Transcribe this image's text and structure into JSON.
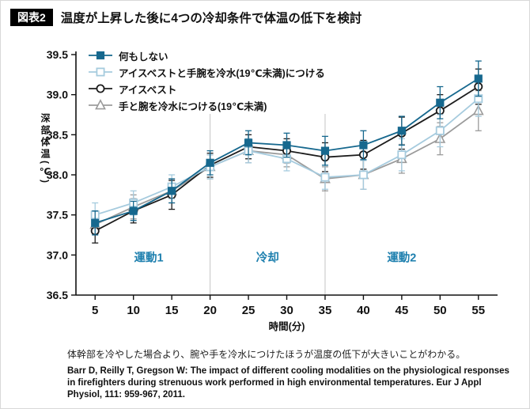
{
  "header": {
    "badge": "図表2",
    "title": "温度が上昇した後に4つの冷却条件で体温の低下を検討"
  },
  "note": "体幹部を冷やした場合より、腕や手を冷水につけたほうが温度の低下が大きいことがわかる。",
  "citation": "Barr D, Reilly T, Gregson W: The impact of different cooling modalities on the physiological responses in firefighters during strenuous work performed in high environmental temperatures. Eur J Appl Physiol, 111: 959-967, 2011.",
  "chart_data": {
    "type": "line",
    "x": [
      5,
      10,
      15,
      20,
      25,
      30,
      35,
      40,
      45,
      50,
      55
    ],
    "xlabel": "時間(分)",
    "ylabel": "深部体温(℃)",
    "xlim": [
      2.5,
      57.5
    ],
    "ylim": [
      36.5,
      39.5
    ],
    "ytick_step": 0.5,
    "grid": false,
    "legend_position": "top-left",
    "phase_color": "#1d7fae",
    "dividers": [
      20,
      35
    ],
    "phases": [
      {
        "label": "運動1",
        "x": 12
      },
      {
        "label": "冷却",
        "x": 27.5
      },
      {
        "label": "運動2",
        "x": 45
      }
    ],
    "series": [
      {
        "name": "何もしない",
        "marker": "square-filled",
        "color": "#16688e",
        "values": [
          37.4,
          37.55,
          37.8,
          38.15,
          38.4,
          38.37,
          38.3,
          38.37,
          38.55,
          38.9,
          39.2
        ],
        "errors": [
          0.15,
          0.12,
          0.15,
          0.15,
          0.15,
          0.15,
          0.18,
          0.18,
          0.18,
          0.2,
          0.22
        ]
      },
      {
        "name": "アイスベストと手腕を冷水(19℃未満)につける",
        "marker": "square-open",
        "color": "#a6cbde",
        "values": [
          37.5,
          37.65,
          37.85,
          38.1,
          38.3,
          38.2,
          37.97,
          38.0,
          38.25,
          38.55,
          38.95
        ],
        "errors": [
          0.15,
          0.15,
          0.15,
          0.15,
          0.15,
          0.15,
          0.15,
          0.18,
          0.2,
          0.2,
          0.22
        ]
      },
      {
        "name": "アイスベスト",
        "marker": "circle-open",
        "color": "#1c1c1c",
        "values": [
          37.3,
          37.55,
          37.75,
          38.12,
          38.35,
          38.3,
          38.22,
          38.25,
          38.52,
          38.8,
          39.1
        ],
        "errors": [
          0.15,
          0.15,
          0.18,
          0.15,
          0.15,
          0.15,
          0.18,
          0.18,
          0.2,
          0.2,
          0.22
        ]
      },
      {
        "name": "手と腕を冷水につける(19℃未満)",
        "marker": "triangle-open",
        "color": "#9b9b9b",
        "values": [
          37.38,
          37.6,
          37.8,
          38.1,
          38.3,
          38.25,
          37.95,
          38.0,
          38.2,
          38.45,
          38.8
        ],
        "errors": [
          0.12,
          0.15,
          0.15,
          0.15,
          0.15,
          0.15,
          0.15,
          0.18,
          0.18,
          0.2,
          0.25
        ]
      }
    ]
  }
}
